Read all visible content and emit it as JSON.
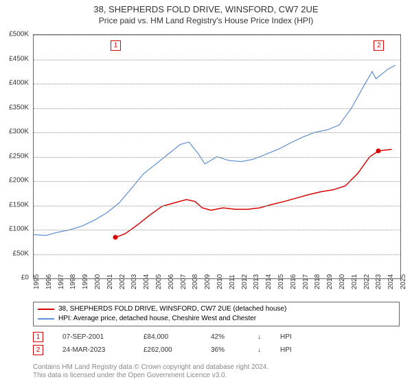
{
  "title_line1": "38, SHEPHERDS FOLD DRIVE, WINSFORD, CW7 2UE",
  "title_line2": "Price paid vs. HM Land Registry's House Price Index (HPI)",
  "chart": {
    "type": "line",
    "background_color": "#ffffff",
    "border_color": "#666666",
    "grid_color": "#999999",
    "xlim": [
      1995,
      2025
    ],
    "ylim": [
      0,
      500000
    ],
    "ytick_step": 50000,
    "y_ticks": [
      "£0",
      "£50K",
      "£100K",
      "£150K",
      "£200K",
      "£250K",
      "£300K",
      "£350K",
      "£400K",
      "£450K",
      "£500K"
    ],
    "x_ticks": [
      "1995",
      "1996",
      "1997",
      "1998",
      "1999",
      "2000",
      "2001",
      "2002",
      "2003",
      "2004",
      "2005",
      "2006",
      "2007",
      "2008",
      "2009",
      "2010",
      "2011",
      "2012",
      "2013",
      "2014",
      "2015",
      "2016",
      "2017",
      "2018",
      "2019",
      "2020",
      "2021",
      "2022",
      "2023",
      "2024",
      "2025"
    ],
    "series": [
      {
        "name": "price_paid",
        "color": "#d90000",
        "line_width": 1.5,
        "data": [
          [
            2001.69,
            84000
          ],
          [
            2002.5,
            92000
          ],
          [
            2003.5,
            110000
          ],
          [
            2004.5,
            130000
          ],
          [
            2005.5,
            148000
          ],
          [
            2006.5,
            155000
          ],
          [
            2007.5,
            162000
          ],
          [
            2008.2,
            158000
          ],
          [
            2008.8,
            145000
          ],
          [
            2009.5,
            140000
          ],
          [
            2010.5,
            145000
          ],
          [
            2011.5,
            142000
          ],
          [
            2012.5,
            142000
          ],
          [
            2013.5,
            145000
          ],
          [
            2014.5,
            152000
          ],
          [
            2015.5,
            158000
          ],
          [
            2016.5,
            165000
          ],
          [
            2017.5,
            172000
          ],
          [
            2018.5,
            178000
          ],
          [
            2019.5,
            182000
          ],
          [
            2020.5,
            190000
          ],
          [
            2021.5,
            215000
          ],
          [
            2022.5,
            250000
          ],
          [
            2023.23,
            262000
          ],
          [
            2024.3,
            265000
          ]
        ]
      },
      {
        "name": "hpi",
        "color": "#5b8fd6",
        "line_width": 1.2,
        "data": [
          [
            1995,
            90000
          ],
          [
            1996,
            88000
          ],
          [
            1997,
            95000
          ],
          [
            1998,
            100000
          ],
          [
            1999,
            108000
          ],
          [
            2000,
            120000
          ],
          [
            2001,
            135000
          ],
          [
            2002,
            155000
          ],
          [
            2003,
            185000
          ],
          [
            2004,
            215000
          ],
          [
            2005,
            235000
          ],
          [
            2006,
            255000
          ],
          [
            2007,
            275000
          ],
          [
            2007.7,
            280000
          ],
          [
            2008.5,
            255000
          ],
          [
            2009,
            235000
          ],
          [
            2010,
            250000
          ],
          [
            2011,
            242000
          ],
          [
            2012,
            240000
          ],
          [
            2013,
            245000
          ],
          [
            2014,
            255000
          ],
          [
            2015,
            265000
          ],
          [
            2016,
            278000
          ],
          [
            2017,
            290000
          ],
          [
            2018,
            300000
          ],
          [
            2019,
            305000
          ],
          [
            2020,
            315000
          ],
          [
            2021,
            350000
          ],
          [
            2022,
            395000
          ],
          [
            2022.7,
            425000
          ],
          [
            2023,
            410000
          ],
          [
            2024,
            430000
          ],
          [
            2024.6,
            438000
          ]
        ]
      }
    ],
    "markers": [
      {
        "n": "1",
        "x": 2001.69,
        "y": 84000,
        "color": "#d90000",
        "box_y_top": true
      },
      {
        "n": "2",
        "x": 2023.23,
        "y": 262000,
        "color": "#d90000",
        "box_y_top": true
      }
    ]
  },
  "legend": {
    "items": [
      {
        "color": "#d90000",
        "label": "38, SHEPHERDS FOLD DRIVE, WINSFORD, CW7 2UE (detached house)"
      },
      {
        "color": "#5b8fd6",
        "label": "HPI: Average price, detached house, Cheshire West and Chester"
      }
    ]
  },
  "transactions": [
    {
      "n": "1",
      "date": "07-SEP-2001",
      "price": "£84,000",
      "pct": "42%",
      "dir": "↓",
      "cmp": "HPI",
      "color": "#d90000"
    },
    {
      "n": "2",
      "date": "24-MAR-2023",
      "price": "£262,000",
      "pct": "36%",
      "dir": "↓",
      "cmp": "HPI",
      "color": "#d90000"
    }
  ],
  "footer_line1": "Contains HM Land Registry data © Crown copyright and database right 2024.",
  "footer_line2": "This data is licensed under the Open Government Licence v3.0."
}
